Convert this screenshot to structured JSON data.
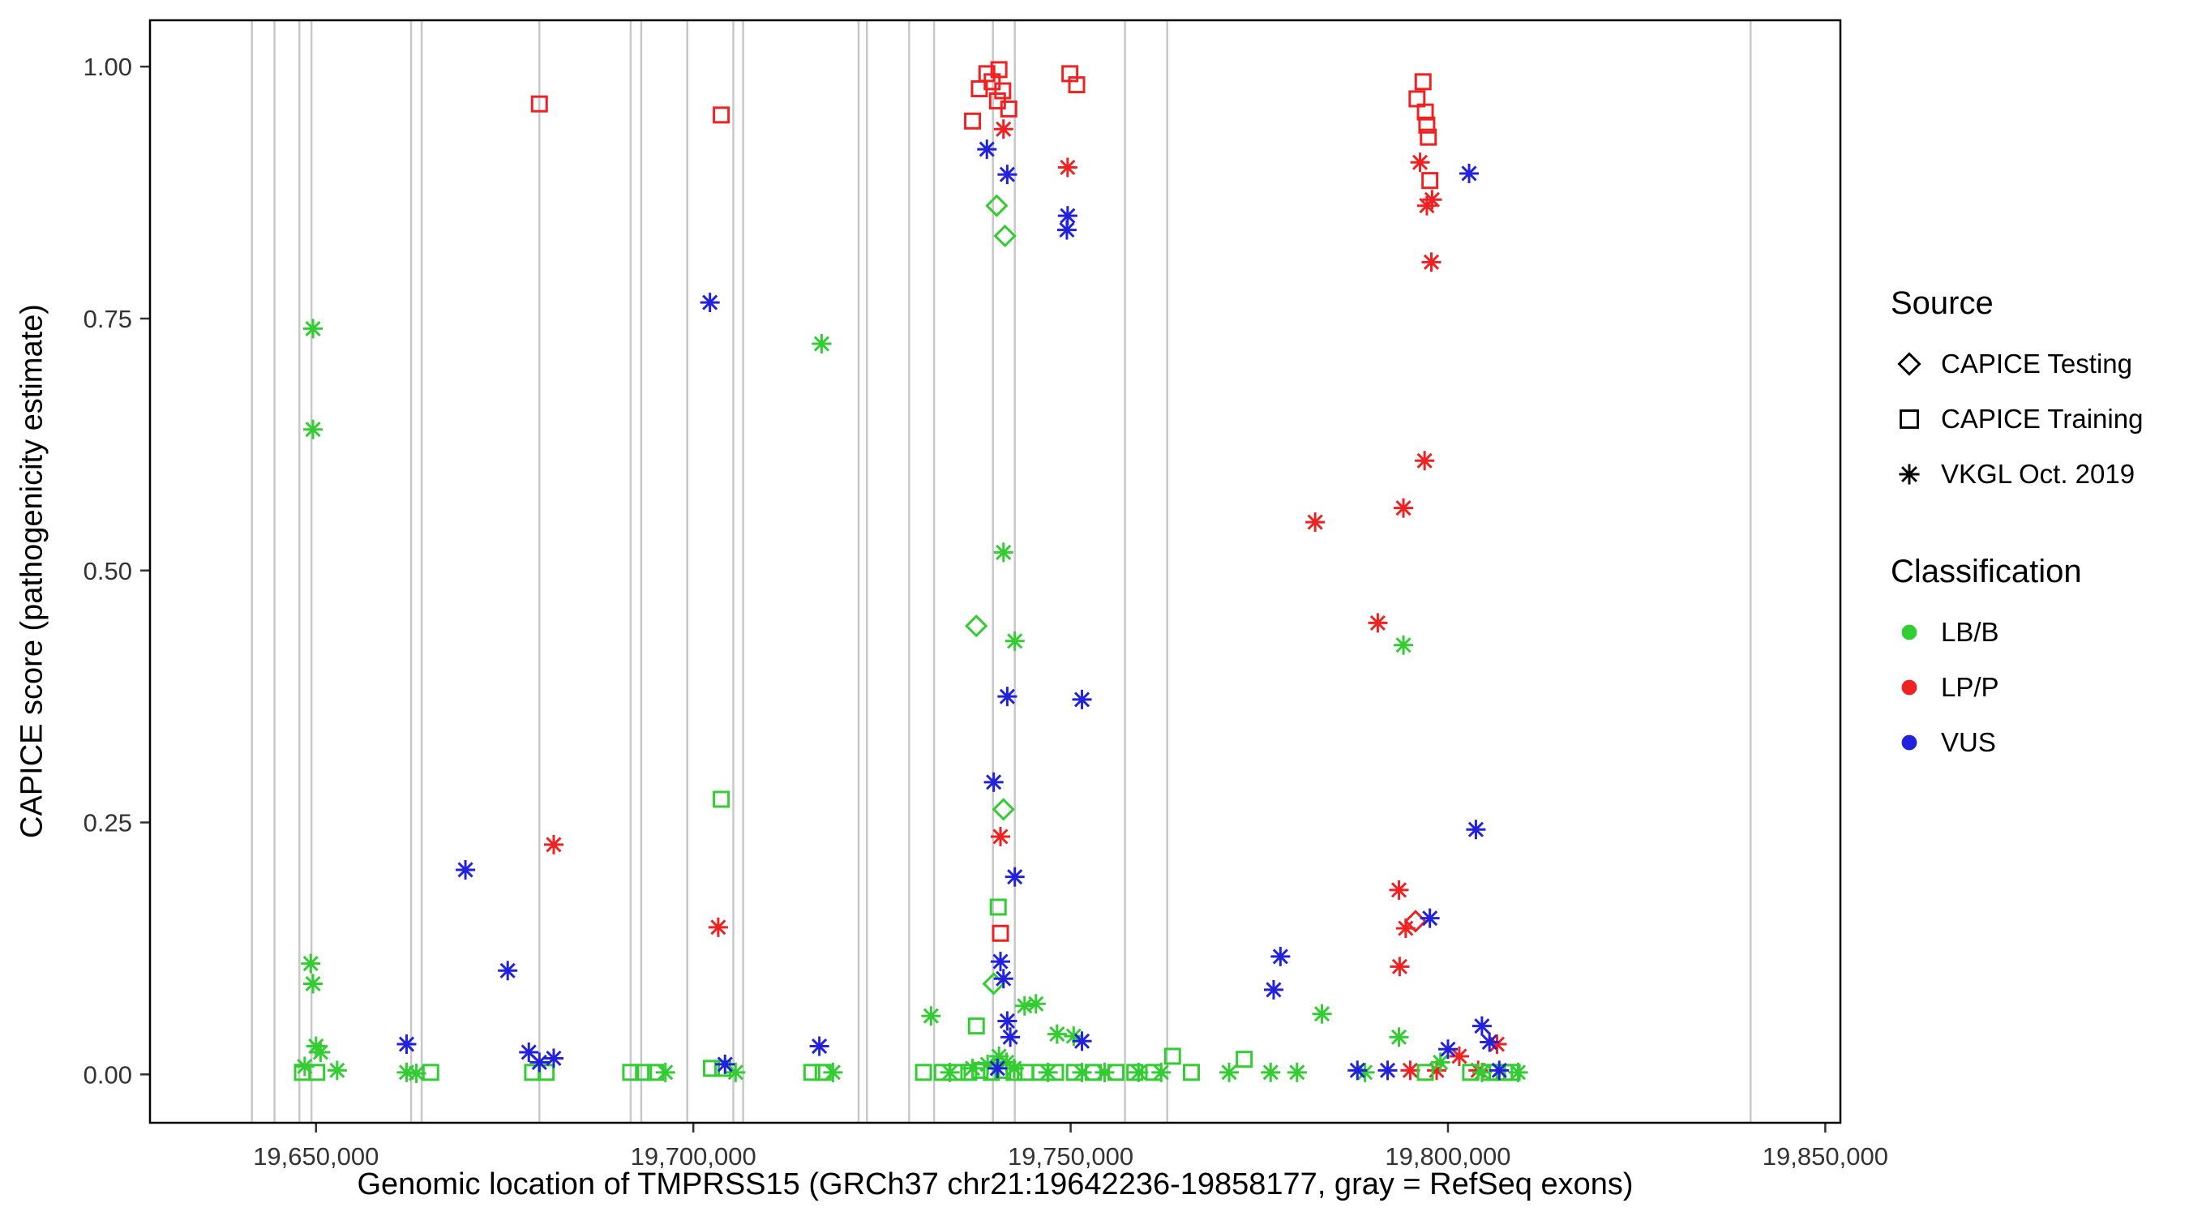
{
  "chart_data": {
    "type": "scatter",
    "title": "",
    "xlabel": "Genomic location of TMPRSS15 (GRCh37 chr21:19642236-19858177, gray = RefSeq exons)",
    "ylabel": "CAPICE score (pathogenicity estimate)",
    "x_domain": [
      19628000,
      19852000
    ],
    "y_domain": [
      -0.048,
      1.046
    ],
    "grid": "off",
    "panel_border": true,
    "legend_position": "right",
    "x_ticks": [
      {
        "value": 19650000,
        "label": "19,650,000"
      },
      {
        "value": 19700000,
        "label": "19,700,000"
      },
      {
        "value": 19750000,
        "label": "19,750,000"
      },
      {
        "value": 19800000,
        "label": "19,800,000"
      },
      {
        "value": 19850000,
        "label": "19,850,000"
      }
    ],
    "y_ticks": [
      {
        "value": 0,
        "label": "0.00"
      },
      {
        "value": 0.25,
        "label": "0.25"
      },
      {
        "value": 0.5,
        "label": "0.50"
      },
      {
        "value": 0.75,
        "label": "0.75"
      },
      {
        "value": 1,
        "label": "1.00"
      }
    ],
    "colors": {
      "exon": "#c8c8c8",
      "panel_border": "#000000",
      "axis_text": "#333333"
    },
    "exon_positions": [
      19641500,
      19644500,
      19647800,
      19649400,
      19662600,
      19664000,
      19679600,
      19691700,
      19693100,
      19699200,
      19705300,
      19706600,
      19721900,
      19723000,
      19728600,
      19731900,
      19739700,
      19742600,
      19757200,
      19762800,
      19840100
    ],
    "legend": {
      "source": {
        "title": "Source",
        "items": [
          {
            "label": "CAPICE Testing",
            "shape": "diamond"
          },
          {
            "label": "CAPICE Training",
            "shape": "square"
          },
          {
            "label": "VKGL Oct. 2019",
            "shape": "asterisk"
          }
        ]
      },
      "classification": {
        "title": "Classification",
        "items": [
          {
            "label": "LB/B",
            "color": "#33cc33"
          },
          {
            "label": "LP/P",
            "color": "#ee2222"
          },
          {
            "label": "VUS",
            "color": "#2222dd"
          }
        ]
      }
    },
    "source_shapes": {
      "test": "diamond",
      "train": "square",
      "vkgl": "asterisk"
    },
    "source_codes": {
      "test": "CAPICE Testing",
      "train": "CAPICE Training",
      "vkgl": "VKGL Oct. 2019"
    },
    "point_format": [
      "genomic_position",
      "capice_score",
      "source_code",
      "classification"
    ],
    "points": [
      [
        19679600,
        0.963,
        "train",
        "LP/P"
      ],
      [
        19703700,
        0.952,
        "train",
        "LP/P"
      ],
      [
        19737000,
        0.946,
        "train",
        "LP/P"
      ],
      [
        19737900,
        0.978,
        "train",
        "LP/P"
      ],
      [
        19738900,
        0.993,
        "train",
        "LP/P"
      ],
      [
        19739600,
        0.985,
        "train",
        "LP/P"
      ],
      [
        19740300,
        0.966,
        "train",
        "LP/P"
      ],
      [
        19740500,
        0.997,
        "train",
        "LP/P"
      ],
      [
        19741000,
        0.976,
        "train",
        "LP/P"
      ],
      [
        19741800,
        0.958,
        "train",
        "LP/P"
      ],
      [
        19749900,
        0.993,
        "train",
        "LP/P"
      ],
      [
        19750800,
        0.982,
        "train",
        "LP/P"
      ],
      [
        19740700,
        0.14,
        "train",
        "LP/P"
      ],
      [
        19795900,
        0.968,
        "train",
        "LP/P"
      ],
      [
        19796700,
        0.985,
        "train",
        "LP/P"
      ],
      [
        19797000,
        0.955,
        "train",
        "LP/P"
      ],
      [
        19797200,
        0.942,
        "train",
        "LP/P"
      ],
      [
        19797400,
        0.93,
        "train",
        "LP/P"
      ],
      [
        19797600,
        0.887,
        "train",
        "LP/P"
      ],
      [
        19795700,
        0.152,
        "test",
        "LP/P"
      ],
      [
        19681500,
        0.228,
        "vkgl",
        "LP/P"
      ],
      [
        19703300,
        0.146,
        "vkgl",
        "LP/P"
      ],
      [
        19740700,
        0.236,
        "vkgl",
        "LP/P"
      ],
      [
        19741100,
        0.938,
        "vkgl",
        "LP/P"
      ],
      [
        19749600,
        0.9,
        "vkgl",
        "LP/P"
      ],
      [
        19782400,
        0.548,
        "vkgl",
        "LP/P"
      ],
      [
        19790700,
        0.448,
        "vkgl",
        "LP/P"
      ],
      [
        19794100,
        0.562,
        "vkgl",
        "LP/P"
      ],
      [
        19796900,
        0.609,
        "vkgl",
        "LP/P"
      ],
      [
        19796300,
        0.905,
        "vkgl",
        "LP/P"
      ],
      [
        19797200,
        0.862,
        "vkgl",
        "LP/P"
      ],
      [
        19797900,
        0.868,
        "vkgl",
        "LP/P"
      ],
      [
        19797800,
        0.806,
        "vkgl",
        "LP/P"
      ],
      [
        19793500,
        0.183,
        "vkgl",
        "LP/P"
      ],
      [
        19794400,
        0.145,
        "vkgl",
        "LP/P"
      ],
      [
        19793600,
        0.107,
        "vkgl",
        "LP/P"
      ],
      [
        19795000,
        0.004,
        "vkgl",
        "LP/P"
      ],
      [
        19798500,
        0.004,
        "vkgl",
        "LP/P"
      ],
      [
        19801500,
        0.018,
        "vkgl",
        "LP/P"
      ],
      [
        19804000,
        0.004,
        "vkgl",
        "LP/P"
      ],
      [
        19806500,
        0.03,
        "vkgl",
        "LP/P"
      ],
      [
        19740200,
        0.862,
        "test",
        "LB/B"
      ],
      [
        19741300,
        0.832,
        "test",
        "LB/B"
      ],
      [
        19737500,
        0.445,
        "test",
        "LB/B"
      ],
      [
        19741100,
        0.263,
        "test",
        "LB/B"
      ],
      [
        19739800,
        0.09,
        "test",
        "LB/B"
      ],
      [
        19648200,
        0.002,
        "train",
        "LB/B"
      ],
      [
        19650100,
        0.002,
        "train",
        "LB/B"
      ],
      [
        19665200,
        0.002,
        "train",
        "LB/B"
      ],
      [
        19678700,
        0.002,
        "train",
        "LB/B"
      ],
      [
        19680500,
        0.002,
        "train",
        "LB/B"
      ],
      [
        19691700,
        0.002,
        "train",
        "LB/B"
      ],
      [
        19693400,
        0.002,
        "train",
        "LB/B"
      ],
      [
        19695000,
        0.002,
        "train",
        "LB/B"
      ],
      [
        19702400,
        0.006,
        "train",
        "LB/B"
      ],
      [
        19703700,
        0.273,
        "train",
        "LB/B"
      ],
      [
        19703900,
        0.006,
        "train",
        "LB/B"
      ],
      [
        19715700,
        0.002,
        "train",
        "LB/B"
      ],
      [
        19717200,
        0.002,
        "train",
        "LB/B"
      ],
      [
        19730500,
        0.002,
        "train",
        "LB/B"
      ],
      [
        19733000,
        0.002,
        "train",
        "LB/B"
      ],
      [
        19735000,
        0.002,
        "train",
        "LB/B"
      ],
      [
        19736500,
        0.002,
        "train",
        "LB/B"
      ],
      [
        19737500,
        0.048,
        "train",
        "LB/B"
      ],
      [
        19738000,
        0.004,
        "train",
        "LB/B"
      ],
      [
        19739500,
        0.002,
        "train",
        "LB/B"
      ],
      [
        19740400,
        0.166,
        "train",
        "LB/B"
      ],
      [
        19741000,
        0.004,
        "train",
        "LB/B"
      ],
      [
        19742500,
        0.002,
        "train",
        "LB/B"
      ],
      [
        19744000,
        0.002,
        "train",
        "LB/B"
      ],
      [
        19746000,
        0.002,
        "train",
        "LB/B"
      ],
      [
        19748000,
        0.002,
        "train",
        "LB/B"
      ],
      [
        19750500,
        0.002,
        "train",
        "LB/B"
      ],
      [
        19753000,
        0.002,
        "train",
        "LB/B"
      ],
      [
        19756000,
        0.002,
        "train",
        "LB/B"
      ],
      [
        19758500,
        0.002,
        "train",
        "LB/B"
      ],
      [
        19761000,
        0.002,
        "train",
        "LB/B"
      ],
      [
        19763500,
        0.018,
        "train",
        "LB/B"
      ],
      [
        19766000,
        0.002,
        "train",
        "LB/B"
      ],
      [
        19773000,
        0.015,
        "train",
        "LB/B"
      ],
      [
        19797000,
        0.002,
        "train",
        "LB/B"
      ],
      [
        19803000,
        0.002,
        "train",
        "LB/B"
      ],
      [
        19805500,
        0.002,
        "train",
        "LB/B"
      ],
      [
        19806500,
        0.002,
        "train",
        "LB/B"
      ],
      [
        19807500,
        0.002,
        "train",
        "LB/B"
      ],
      [
        19808500,
        0.002,
        "train",
        "LB/B"
      ],
      [
        19648500,
        0.008,
        "vkgl",
        "LB/B"
      ],
      [
        19649300,
        0.11,
        "vkgl",
        "LB/B"
      ],
      [
        19649600,
        0.74,
        "vkgl",
        "LB/B"
      ],
      [
        19649600,
        0.64,
        "vkgl",
        "LB/B"
      ],
      [
        19649600,
        0.09,
        "vkgl",
        "LB/B"
      ],
      [
        19650000,
        0.028,
        "vkgl",
        "LB/B"
      ],
      [
        19650600,
        0.022,
        "vkgl",
        "LB/B"
      ],
      [
        19652800,
        0.004,
        "vkgl",
        "LB/B"
      ],
      [
        19662000,
        0.002,
        "vkgl",
        "LB/B"
      ],
      [
        19663300,
        0.001,
        "vkgl",
        "LB/B"
      ],
      [
        19696300,
        0.002,
        "vkgl",
        "LB/B"
      ],
      [
        19705600,
        0.002,
        "vkgl",
        "LB/B"
      ],
      [
        19717000,
        0.725,
        "vkgl",
        "LB/B"
      ],
      [
        19718500,
        0.002,
        "vkgl",
        "LB/B"
      ],
      [
        19731500,
        0.058,
        "vkgl",
        "LB/B"
      ],
      [
        19734000,
        0.002,
        "vkgl",
        "LB/B"
      ],
      [
        19737000,
        0.006,
        "vkgl",
        "LB/B"
      ],
      [
        19739000,
        0.01,
        "vkgl",
        "LB/B"
      ],
      [
        19740500,
        0.018,
        "vkgl",
        "LB/B"
      ],
      [
        19741100,
        0.518,
        "vkgl",
        "LB/B"
      ],
      [
        19741500,
        0.012,
        "vkgl",
        "LB/B"
      ],
      [
        19742500,
        0.006,
        "vkgl",
        "LB/B"
      ],
      [
        19742600,
        0.43,
        "vkgl",
        "LB/B"
      ],
      [
        19743900,
        0.068,
        "vkgl",
        "LB/B"
      ],
      [
        19745400,
        0.07,
        "vkgl",
        "LB/B"
      ],
      [
        19747000,
        0.002,
        "vkgl",
        "LB/B"
      ],
      [
        19748200,
        0.04,
        "vkgl",
        "LB/B"
      ],
      [
        19750400,
        0.038,
        "vkgl",
        "LB/B"
      ],
      [
        19751500,
        0.002,
        "vkgl",
        "LB/B"
      ],
      [
        19754500,
        0.002,
        "vkgl",
        "LB/B"
      ],
      [
        19759000,
        0.002,
        "vkgl",
        "LB/B"
      ],
      [
        19762000,
        0.002,
        "vkgl",
        "LB/B"
      ],
      [
        19771000,
        0.002,
        "vkgl",
        "LB/B"
      ],
      [
        19776500,
        0.002,
        "vkgl",
        "LB/B"
      ],
      [
        19780000,
        0.002,
        "vkgl",
        "LB/B"
      ],
      [
        19783300,
        0.06,
        "vkgl",
        "LB/B"
      ],
      [
        19789000,
        0.002,
        "vkgl",
        "LB/B"
      ],
      [
        19793500,
        0.037,
        "vkgl",
        "LB/B"
      ],
      [
        19794100,
        0.426,
        "vkgl",
        "LB/B"
      ],
      [
        19799000,
        0.012,
        "vkgl",
        "LB/B"
      ],
      [
        19804500,
        0.002,
        "vkgl",
        "LB/B"
      ],
      [
        19809300,
        0.002,
        "vkgl",
        "LB/B"
      ],
      [
        19662000,
        0.03,
        "vkgl",
        "VUS"
      ],
      [
        19669800,
        0.203,
        "vkgl",
        "VUS"
      ],
      [
        19675400,
        0.103,
        "vkgl",
        "VUS"
      ],
      [
        19678200,
        0.022,
        "vkgl",
        "VUS"
      ],
      [
        19679600,
        0.012,
        "vkgl",
        "VUS"
      ],
      [
        19681500,
        0.016,
        "vkgl",
        "VUS"
      ],
      [
        19702200,
        0.766,
        "vkgl",
        "VUS"
      ],
      [
        19704200,
        0.01,
        "vkgl",
        "VUS"
      ],
      [
        19716700,
        0.028,
        "vkgl",
        "VUS"
      ],
      [
        19738900,
        0.918,
        "vkgl",
        "VUS"
      ],
      [
        19739800,
        0.29,
        "vkgl",
        "VUS"
      ],
      [
        19740300,
        0.006,
        "vkgl",
        "VUS"
      ],
      [
        19740700,
        0.112,
        "vkgl",
        "VUS"
      ],
      [
        19741100,
        0.095,
        "vkgl",
        "VUS"
      ],
      [
        19741600,
        0.893,
        "vkgl",
        "VUS"
      ],
      [
        19741600,
        0.375,
        "vkgl",
        "VUS"
      ],
      [
        19741600,
        0.053,
        "vkgl",
        "VUS"
      ],
      [
        19742000,
        0.037,
        "vkgl",
        "VUS"
      ],
      [
        19742600,
        0.196,
        "vkgl",
        "VUS"
      ],
      [
        19749500,
        0.838,
        "vkgl",
        "VUS"
      ],
      [
        19749600,
        0.852,
        "vkgl",
        "VUS"
      ],
      [
        19751500,
        0.372,
        "vkgl",
        "VUS"
      ],
      [
        19751500,
        0.033,
        "vkgl",
        "VUS"
      ],
      [
        19776900,
        0.084,
        "vkgl",
        "VUS"
      ],
      [
        19777800,
        0.117,
        "vkgl",
        "VUS"
      ],
      [
        19788000,
        0.004,
        "vkgl",
        "VUS"
      ],
      [
        19792000,
        0.004,
        "vkgl",
        "VUS"
      ],
      [
        19797600,
        0.155,
        "vkgl",
        "VUS"
      ],
      [
        19800000,
        0.025,
        "vkgl",
        "VUS"
      ],
      [
        19802800,
        0.894,
        "vkgl",
        "VUS"
      ],
      [
        19803700,
        0.243,
        "vkgl",
        "VUS"
      ],
      [
        19804500,
        0.048,
        "vkgl",
        "VUS"
      ],
      [
        19805500,
        0.032,
        "vkgl",
        "VUS"
      ],
      [
        19806800,
        0.004,
        "vkgl",
        "VUS"
      ]
    ]
  }
}
